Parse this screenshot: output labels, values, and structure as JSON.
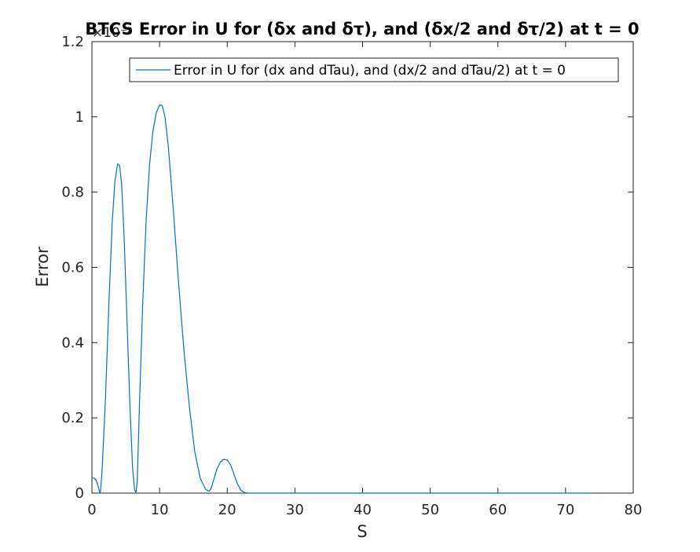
{
  "chart_data": {
    "type": "line",
    "title": "BTCS Error in U for (δx and δτ), and (δx/2 and δτ/2) at t = 0",
    "xlabel": "S",
    "ylabel": "Error",
    "xlim": [
      0,
      80
    ],
    "ylim": [
      0,
      1.2
    ],
    "y_exponent_label": "×10⁻²",
    "x_ticks": [
      "0",
      "10",
      "20",
      "30",
      "40",
      "50",
      "60",
      "70",
      "80"
    ],
    "y_ticks": [
      "0",
      "0.2",
      "0.4",
      "0.6",
      "0.8",
      "1",
      "1.2"
    ],
    "x_tick_values": [
      0,
      10,
      20,
      30,
      40,
      50,
      60,
      70,
      80
    ],
    "y_tick_values": [
      0,
      0.2,
      0.4,
      0.6,
      0.8,
      1.0,
      1.2
    ],
    "grid": false,
    "legend_position": "top-right",
    "series": [
      {
        "name": "Error in U for (dx and dTau), and (dx/2 and dTau/2) at t = 0",
        "color": "#0072BD",
        "x": [
          0,
          0.3,
          0.6,
          0.9,
          1.1,
          1.25,
          1.5,
          2.0,
          2.5,
          3.0,
          3.4,
          3.8,
          4.1,
          4.4,
          4.8,
          5.2,
          5.6,
          6.0,
          6.3,
          6.5,
          6.7,
          7.0,
          7.5,
          8.0,
          8.5,
          9.0,
          9.5,
          10.0,
          10.4,
          10.8,
          11.3,
          12.0,
          12.8,
          13.6,
          14.4,
          15.2,
          16.0,
          16.8,
          17.3,
          17.6,
          18.0,
          18.5,
          19.0,
          19.5,
          20.0,
          20.5,
          21.0,
          21.5,
          22.0,
          22.5,
          23.0,
          25.0,
          30.0,
          40.0,
          50.0,
          60.0,
          70.0,
          74.0
        ],
        "y": [
          0.04,
          0.04,
          0.035,
          0.02,
          0.005,
          0.0,
          0.06,
          0.25,
          0.5,
          0.72,
          0.83,
          0.875,
          0.87,
          0.82,
          0.66,
          0.45,
          0.24,
          0.07,
          0.01,
          0.0,
          0.03,
          0.22,
          0.5,
          0.72,
          0.87,
          0.96,
          1.01,
          1.032,
          1.03,
          1.0,
          0.92,
          0.76,
          0.56,
          0.38,
          0.23,
          0.11,
          0.04,
          0.01,
          0.005,
          0.012,
          0.035,
          0.065,
          0.083,
          0.09,
          0.088,
          0.075,
          0.05,
          0.025,
          0.008,
          0.002,
          0.0,
          0.0,
          0.0,
          0.0,
          0.0,
          0.0,
          0.0,
          0.0
        ]
      }
    ]
  }
}
